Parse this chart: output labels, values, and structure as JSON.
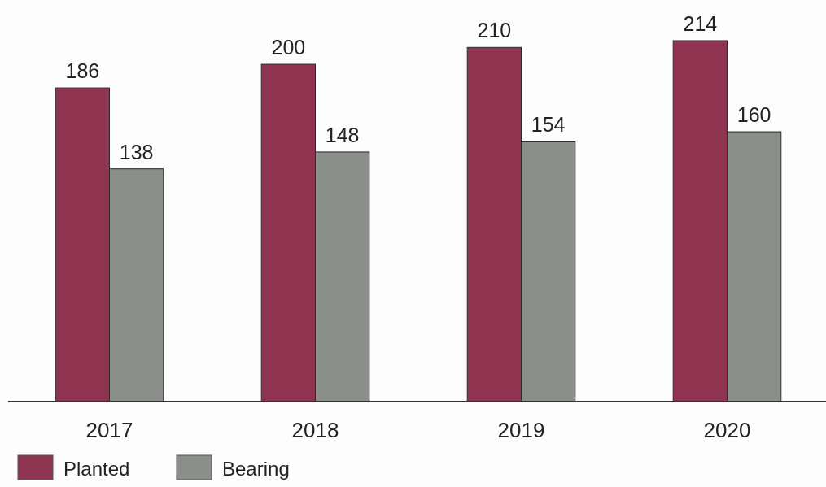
{
  "chart_data": {
    "type": "bar",
    "categories": [
      "2017",
      "2018",
      "2019",
      "2020"
    ],
    "series": [
      {
        "name": "Planted",
        "color": "#8e3450",
        "values": [
          186,
          200,
          210,
          214
        ]
      },
      {
        "name": "Bearing",
        "color": "#8a8f8a",
        "values": [
          138,
          148,
          154,
          160
        ]
      }
    ],
    "data_labels": true,
    "legend": "bottom left"
  }
}
